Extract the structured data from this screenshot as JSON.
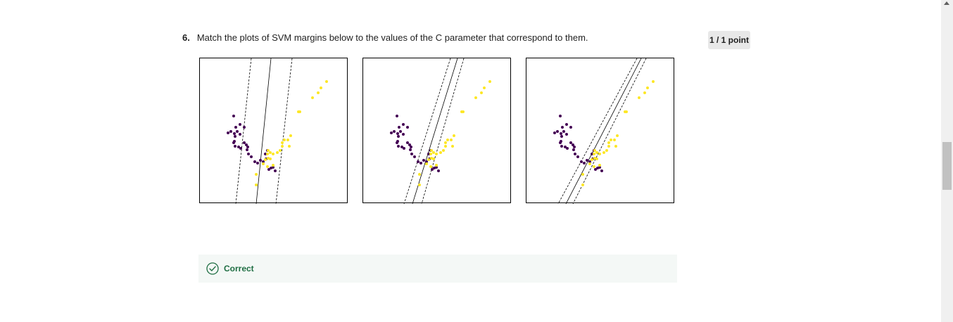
{
  "question": {
    "number": "6.",
    "text": "Match the plots of SVM margins below to the values of the C parameter that correspond to them."
  },
  "score": {
    "label": "1 / 1 point"
  },
  "feedback": {
    "icon": "check-circle-icon",
    "label": "Correct",
    "color": "#1f6e43"
  },
  "colors": {
    "class_a": "#440154",
    "class_b": "#fde725"
  },
  "plots": [
    {
      "name": "svm-plot-1"
    },
    {
      "name": "svm-plot-2"
    },
    {
      "name": "svm-plot-3"
    }
  ]
}
